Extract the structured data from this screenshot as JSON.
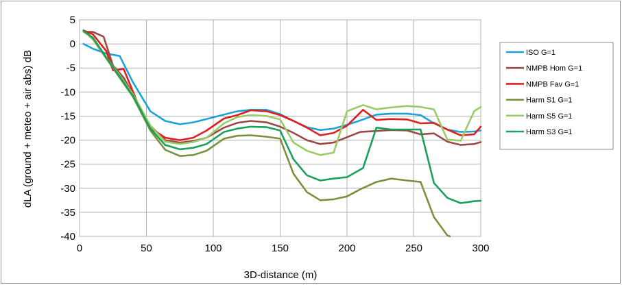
{
  "chart_data": {
    "type": "line",
    "title": "",
    "xlabel": "3D-distance (m)",
    "ylabel": "dLA (ground + meteo + air abs) dB",
    "xlim": [
      0,
      300
    ],
    "ylim": [
      -40,
      5
    ],
    "xticks": [
      0,
      50,
      100,
      150,
      200,
      250,
      300
    ],
    "yticks": [
      5,
      0,
      -5,
      -10,
      -15,
      -20,
      -25,
      -30,
      -35,
      -40
    ],
    "grid": "horizontal-and-vertical",
    "legend_position": "right",
    "series": [
      {
        "name": "ISO G=1",
        "color": "#1aa3d9",
        "x": [
          3,
          10,
          20,
          30,
          40,
          53,
          64,
          75,
          85,
          95,
          108,
          118,
          128,
          140,
          150,
          160,
          170,
          180,
          190,
          200,
          210,
          222,
          233,
          245,
          255,
          265,
          275,
          285,
          295,
          300
        ],
        "y": [
          0,
          -1,
          -2,
          -2.5,
          -8,
          -14,
          -16,
          -16.7,
          -16.3,
          -15.6,
          -14.7,
          -14,
          -13.7,
          -13.7,
          -14.6,
          -16,
          -17.3,
          -17.9,
          -17.6,
          -16.8,
          -15.9,
          -14.7,
          -14.5,
          -14.5,
          -14.8,
          -16.5,
          -17.8,
          -18.3,
          -18.2,
          -18
        ]
      },
      {
        "name": "NMPB Hom G=1",
        "color": "#9a4848",
        "x": [
          3,
          10,
          18,
          25,
          33,
          43,
          53,
          64,
          75,
          85,
          95,
          108,
          118,
          128,
          140,
          150,
          160,
          170,
          180,
          190,
          200,
          210,
          222,
          233,
          245,
          255,
          265,
          275,
          285,
          295,
          300
        ],
        "y": [
          2.5,
          2.5,
          1.5,
          -4.5,
          -7,
          -12,
          -17,
          -20,
          -20.5,
          -20.2,
          -19.5,
          -17.4,
          -16.4,
          -16,
          -16.3,
          -17.2,
          -18.5,
          -20,
          -20.8,
          -20.5,
          -19.4,
          -18.3,
          -18.1,
          -17.9,
          -18,
          -18.8,
          -18.6,
          -20.3,
          -21,
          -20.8,
          -20.4
        ]
      },
      {
        "name": "NMPB Fav G=1",
        "color": "#e01e1e",
        "x": [
          3,
          10,
          20,
          25,
          33,
          43,
          53,
          64,
          75,
          85,
          95,
          108,
          118,
          128,
          140,
          150,
          160,
          170,
          180,
          190,
          200,
          212,
          222,
          233,
          245,
          255,
          265,
          275,
          285,
          295,
          300
        ],
        "y": [
          2.8,
          2,
          -1.5,
          -5.5,
          -5.2,
          -12,
          -17.5,
          -19.5,
          -20,
          -19.5,
          -18,
          -15.5,
          -14.8,
          -13.8,
          -14,
          -14.8,
          -16,
          -17.4,
          -19,
          -18.5,
          -17,
          -13.7,
          -15.8,
          -15.6,
          -15.7,
          -16.5,
          -16.4,
          -17.8,
          -19,
          -18.8,
          -17.2
        ]
      },
      {
        "name": "Harm S1 G=1",
        "color": "#76923c",
        "x": [
          3,
          10,
          20,
          30,
          40,
          53,
          64,
          75,
          85,
          95,
          108,
          118,
          128,
          140,
          150,
          160,
          170,
          180,
          190,
          200,
          210,
          222,
          233,
          245,
          255,
          265,
          275,
          277
        ],
        "y": [
          2.7,
          1,
          -3,
          -7,
          -11,
          -18,
          -22,
          -23.3,
          -23.1,
          -22.2,
          -19.7,
          -19.1,
          -19,
          -19.3,
          -19.7,
          -27,
          -30.8,
          -32.5,
          -32.3,
          -31.7,
          -30.2,
          -28.7,
          -28,
          -28.4,
          -28.7,
          -36,
          -39.8,
          -40
        ]
      },
      {
        "name": "Harm S5 G=1",
        "color": "#99cc66",
        "x": [
          3,
          10,
          20,
          30,
          40,
          53,
          64,
          75,
          85,
          95,
          108,
          118,
          128,
          140,
          150,
          160,
          170,
          180,
          190,
          200,
          212,
          222,
          233,
          245,
          255,
          265,
          275,
          285,
          295,
          300
        ],
        "y": [
          2.5,
          1.2,
          -2.8,
          -6.5,
          -10.5,
          -17,
          -20.3,
          -20.8,
          -20.4,
          -19.5,
          -16.5,
          -15.2,
          -14.8,
          -15,
          -15.7,
          -20.5,
          -22.2,
          -23.1,
          -22.6,
          -14,
          -12.7,
          -13.6,
          -13.2,
          -12.9,
          -13.1,
          -13.6,
          -19.9,
          -20.1,
          -14,
          -13.1
        ]
      },
      {
        "name": "Harm S3 G=1",
        "color": "#1aa05a",
        "x": [
          3,
          10,
          20,
          30,
          40,
          53,
          64,
          75,
          85,
          95,
          108,
          118,
          128,
          140,
          150,
          160,
          170,
          180,
          190,
          200,
          212,
          222,
          233,
          245,
          255,
          265,
          275,
          285,
          295,
          300
        ],
        "y": [
          2.7,
          1.3,
          -2.8,
          -6.8,
          -10.8,
          -17.6,
          -21,
          -21.9,
          -21.6,
          -20.8,
          -18.3,
          -17.6,
          -17.2,
          -17.3,
          -18,
          -24,
          -27.3,
          -28.4,
          -28,
          -27.7,
          -25.8,
          -17.4,
          -17.8,
          -17.8,
          -17.8,
          -28.9,
          -32,
          -33.1,
          -32.7,
          -32.6
        ]
      }
    ]
  }
}
